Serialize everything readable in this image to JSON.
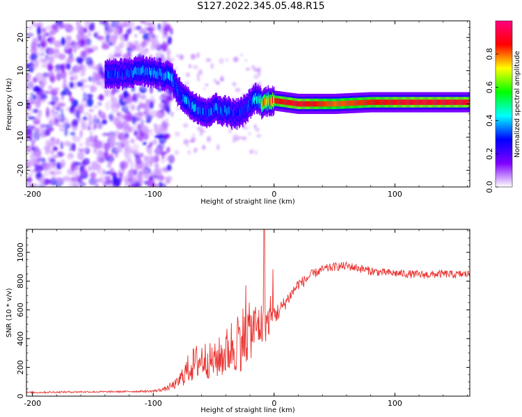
{
  "page": {
    "title": "S127.2022.345.05.48.R15"
  },
  "chart_data": [
    {
      "type": "heatmap",
      "xlabel": "Height of straight line (km)",
      "ylabel": "Frequency (Hz)",
      "xlim": [
        -205,
        162
      ],
      "ylim": [
        -25,
        25
      ],
      "xticks": [
        -200,
        -100,
        0,
        100
      ],
      "yticks": [
        -20,
        -10,
        0,
        10,
        20
      ],
      "colorbar": {
        "label": "Normalized spectral amplitude",
        "range": [
          0,
          1
        ],
        "ticks": [
          0.0,
          0.2,
          0.4,
          0.6,
          0.8
        ],
        "colors": [
          "#ffffff",
          "#7f00ff",
          "#0000ff",
          "#00ffff",
          "#00ff00",
          "#ffff00",
          "#ff0000",
          "#ff0080"
        ]
      },
      "ridge": {
        "x": [
          -140,
          -125,
          -110,
          -95,
          -85,
          -80,
          -75,
          -70,
          -65,
          -60,
          -55,
          -50,
          -45,
          -40,
          -35,
          -30,
          -25,
          -20,
          -15,
          -12,
          -10,
          -5,
          0,
          20,
          50,
          80,
          110,
          140,
          162
        ],
        "frequency": [
          9,
          9,
          10,
          9,
          8,
          4,
          2,
          0,
          -1,
          -2,
          -3,
          -1,
          -2,
          -2,
          -3,
          -3,
          -2,
          0,
          2,
          1,
          0,
          1,
          1,
          0,
          0,
          0.5,
          0.5,
          0.5,
          0.5
        ],
        "amplitude": [
          0.3,
          0.3,
          0.35,
          0.35,
          0.4,
          0.3,
          0.35,
          0.35,
          0.4,
          0.35,
          0.3,
          0.35,
          0.35,
          0.35,
          0.3,
          0.3,
          0.3,
          0.3,
          0.4,
          0.45,
          0.7,
          0.8,
          0.85,
          0.9,
          0.8,
          0.85,
          0.9,
          0.9,
          0.9
        ]
      }
    },
    {
      "type": "line",
      "xlabel": "Height of straight line (km)",
      "ylabel": "SNR (10 * v/v)",
      "xlim": [
        -205,
        162
      ],
      "ylim": [
        0,
        1160
      ],
      "xticks": [
        -200,
        -100,
        0,
        100
      ],
      "yticks": [
        0,
        200,
        400,
        600,
        800,
        1000
      ],
      "series": [
        {
          "color": "#e8312e",
          "x": [
            -205,
            -180,
            -160,
            -140,
            -120,
            -100,
            -90,
            -80,
            -75,
            -70,
            -65,
            -60,
            -55,
            -50,
            -45,
            -40,
            -35,
            -30,
            -25,
            -20,
            -15,
            -10,
            -5,
            0,
            5,
            10,
            15,
            20,
            25,
            30,
            40,
            50,
            60,
            70,
            80,
            90,
            100,
            110,
            120,
            130,
            140,
            150,
            162
          ],
          "y": [
            25,
            28,
            30,
            30,
            32,
            35,
            50,
            90,
            150,
            200,
            230,
            260,
            250,
            240,
            270,
            300,
            350,
            380,
            420,
            450,
            480,
            500,
            520,
            560,
            600,
            660,
            720,
            780,
            800,
            840,
            880,
            900,
            905,
            890,
            870,
            860,
            855,
            850,
            845,
            845,
            850,
            845,
            850
          ],
          "noise": [
            6,
            6,
            6,
            6,
            6,
            8,
            15,
            40,
            80,
            110,
            130,
            140,
            130,
            120,
            150,
            170,
            200,
            220,
            230,
            200,
            180,
            160,
            120,
            80,
            60,
            50,
            45,
            40,
            40,
            35,
            30,
            30,
            30,
            30,
            30,
            28,
            28,
            28,
            28,
            28,
            28,
            28,
            28
          ]
        }
      ]
    }
  ]
}
